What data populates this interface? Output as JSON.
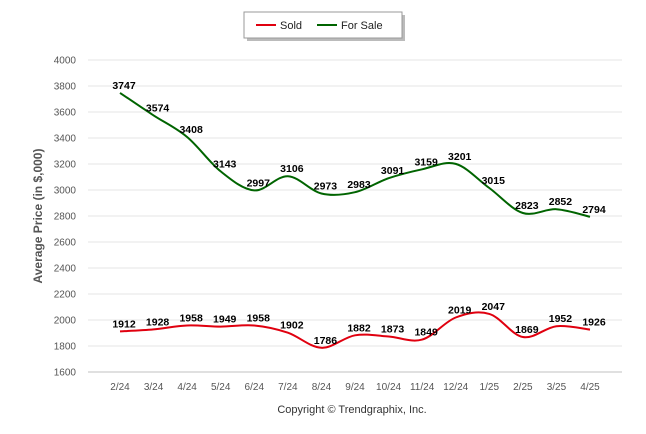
{
  "chart_data": {
    "type": "line",
    "categories": [
      "2/24",
      "3/24",
      "4/24",
      "5/24",
      "6/24",
      "7/24",
      "8/24",
      "9/24",
      "10/24",
      "11/24",
      "12/24",
      "1/25",
      "2/25",
      "3/25",
      "4/25"
    ],
    "series": [
      {
        "name": "Sold",
        "color": "#e0000f",
        "values": [
          1912,
          1928,
          1958,
          1949,
          1958,
          1902,
          1786,
          1882,
          1873,
          1849,
          2019,
          2047,
          1869,
          1952,
          1926
        ]
      },
      {
        "name": "For Sale",
        "color": "#006400",
        "values": [
          3747,
          3574,
          3408,
          3143,
          2997,
          3106,
          2973,
          2983,
          3091,
          3159,
          3201,
          3015,
          2823,
          2852,
          2794
        ]
      }
    ],
    "ylabel": "Average Price (in $,000)",
    "ylim": [
      1600,
      4000
    ],
    "yticks": [
      1600,
      1800,
      2000,
      2200,
      2400,
      2600,
      2800,
      3000,
      3200,
      3400,
      3600,
      3800,
      4000
    ],
    "grid": true,
    "legend_position": "top-center",
    "credit": "Copyright © Trendgraphix, Inc."
  }
}
